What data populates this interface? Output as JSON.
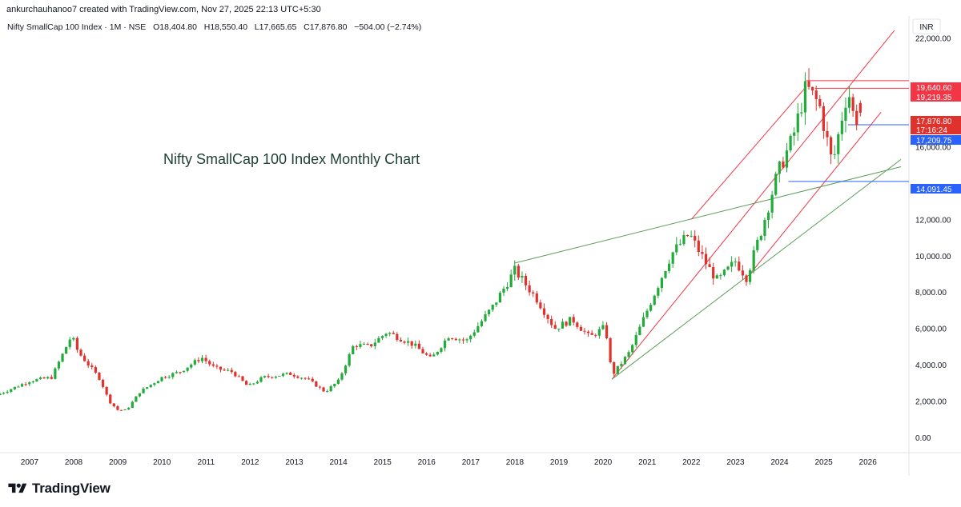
{
  "header": {
    "credit": "ankurchauhanoo7 created with TradingView.com, Nov 27, 2025 22:13 UTC+5:30",
    "symbol": "Nifty SmallCap 100 Index · 1M · NSE",
    "open": "O18,404.80",
    "high": "H18,550.40",
    "low": "L17,665.65",
    "close": "C17,876.80",
    "change": "−504.00 (−2.74%)"
  },
  "annotation": "Nifty SmallCap 100 Index Monthly Chart",
  "brand": "TradingView",
  "colors": {
    "up": "#22ab3b",
    "down": "#e0322c",
    "red_line": "#f23645",
    "green_line": "#5c9e5a",
    "blue": "#2962ff"
  },
  "chart_data": {
    "type": "candlestick",
    "title": "Nifty SmallCap 100 Index · 1M · NSE",
    "currency": "INR",
    "ylim": [
      -800,
      23200
    ],
    "y_ticks": [
      "0.00",
      "2,000.00",
      "4,000.00",
      "6,000.00",
      "8,000.00",
      "10,000.00",
      "12,000.00",
      "16,000.00",
      "22,000.00"
    ],
    "y_tick_values": [
      0,
      2000,
      4000,
      6000,
      8000,
      10000,
      12000,
      16000,
      22000
    ],
    "x_ticks": [
      "2007",
      "2008",
      "2009",
      "2010",
      "2011",
      "2012",
      "2013",
      "2014",
      "2015",
      "2016",
      "2017",
      "2018",
      "2019",
      "2020",
      "2021",
      "2022",
      "2023",
      "2024",
      "2025",
      "2026"
    ],
    "x_tick_years": [
      2007,
      2008,
      2009,
      2010,
      2011,
      2012,
      2013,
      2014,
      2015,
      2016,
      2017,
      2018,
      2019,
      2020,
      2021,
      2022,
      2023,
      2024,
      2025,
      2026
    ],
    "price_labels": [
      {
        "text": "19,640.60",
        "value": 19640.6,
        "color": "#f23645"
      },
      {
        "text": "19,219.35",
        "value": 19219.35,
        "color": "#f23645"
      },
      {
        "text": "17,876.80",
        "value": 17876.8,
        "color": "#f23645"
      },
      {
        "text": "17:16:24",
        "value": 17876.8,
        "color": "#f23645"
      },
      {
        "text": "17,209.75",
        "value": 17209.75,
        "color": "#2962ff"
      },
      {
        "text": "14,091.45",
        "value": 14091.45,
        "color": "#2962ff"
      }
    ],
    "ohlc_current": {
      "open": 18404.8,
      "high": 18550.4,
      "low": 17665.65,
      "close": 17876.8
    },
    "anchors": [
      [
        2006.33,
        2400
      ],
      [
        2007.0,
        3100
      ],
      [
        2007.5,
        3300
      ],
      [
        2007.95,
        5600
      ],
      [
        2008.1,
        4700
      ],
      [
        2008.6,
        3200
      ],
      [
        2008.8,
        2000
      ],
      [
        2009.0,
        1500
      ],
      [
        2009.2,
        1500
      ],
      [
        2009.5,
        2500
      ],
      [
        2010.0,
        3300
      ],
      [
        2010.4,
        3600
      ],
      [
        2010.9,
        4400
      ],
      [
        2011.2,
        3800
      ],
      [
        2011.6,
        3600
      ],
      [
        2011.95,
        2800
      ],
      [
        2012.3,
        3300
      ],
      [
        2012.9,
        3500
      ],
      [
        2013.3,
        3200
      ],
      [
        2013.7,
        2500
      ],
      [
        2014.0,
        3100
      ],
      [
        2014.35,
        5100
      ],
      [
        2014.7,
        5000
      ],
      [
        2015.1,
        5800
      ],
      [
        2015.7,
        5100
      ],
      [
        2016.1,
        4300
      ],
      [
        2016.5,
        5600
      ],
      [
        2016.9,
        5300
      ],
      [
        2017.5,
        7200
      ],
      [
        2018.0,
        9200
      ],
      [
        2018.5,
        7600
      ],
      [
        2018.9,
        6000
      ],
      [
        2019.3,
        6500
      ],
      [
        2019.7,
        5500
      ],
      [
        2020.05,
        6100
      ],
      [
        2020.2,
        3400
      ],
      [
        2020.6,
        4700
      ],
      [
        2021.0,
        7000
      ],
      [
        2021.55,
        10100
      ],
      [
        2021.95,
        11200
      ],
      [
        2022.4,
        9300
      ],
      [
        2022.6,
        8600
      ],
      [
        2023.0,
        9700
      ],
      [
        2023.25,
        8800
      ],
      [
        2023.6,
        11500
      ],
      [
        2023.95,
        14500
      ],
      [
        2024.3,
        16500
      ],
      [
        2024.6,
        19300
      ],
      [
        2024.9,
        18300
      ],
      [
        2025.2,
        15000
      ],
      [
        2025.4,
        17500
      ],
      [
        2025.55,
        19200
      ],
      [
        2025.7,
        17400
      ],
      [
        2025.87,
        17877
      ]
    ],
    "trend_lines": [
      {
        "color": "red",
        "points": [
          [
            2020.2,
            3200
          ],
          [
            2026.6,
            22400
          ]
        ]
      },
      {
        "color": "red",
        "points": [
          [
            2023.3,
            8900
          ],
          [
            2026.3,
            17900
          ]
        ]
      },
      {
        "color": "green",
        "points": [
          [
            2020.2,
            3200
          ],
          [
            2026.75,
            15300
          ]
        ]
      },
      {
        "color": "green",
        "points": [
          [
            2018.0,
            9600
          ],
          [
            2026.75,
            14900
          ]
        ]
      },
      {
        "color": "red",
        "points": [
          [
            2022.0,
            12000
          ],
          [
            2024.6,
            19300
          ]
        ]
      }
    ],
    "level_lines": [
      {
        "color": "red",
        "value": 19640.6,
        "from": 2024.6
      },
      {
        "color": "red",
        "value": 19219.35,
        "from": 2024.8
      },
      {
        "color": "blue",
        "value": 17209.75,
        "from": 2025.55
      },
      {
        "color": "blue",
        "value": 14091.45,
        "from": 2024.2
      }
    ]
  }
}
